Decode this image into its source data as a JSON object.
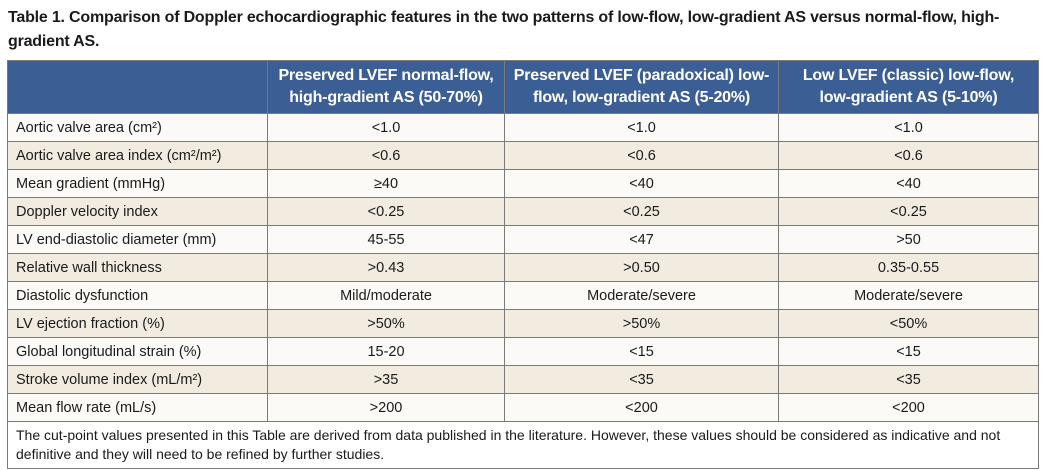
{
  "title": "Table 1. Comparison of Doppler echocardiographic features in the two patterns of low-flow, low-gradient AS versus normal-flow, high-gradient AS.",
  "headers": [
    "",
    "Preserved LVEF normal-flow, high-gradient AS (50-70%)",
    "Preserved LVEF (paradoxical) low-flow, low-gradient AS (5-20%)",
    "Low LVEF (classic) low-flow, low-gradient AS (5-10%)"
  ],
  "rows": [
    [
      "Aortic valve area (cm²)",
      "<1.0",
      "<1.0",
      "<1.0"
    ],
    [
      "Aortic valve area index (cm²/m²)",
      "<0.6",
      "<0.6",
      "<0.6"
    ],
    [
      "Mean gradient (mmHg)",
      "≥40",
      "<40",
      "<40"
    ],
    [
      "Doppler velocity index",
      "<0.25",
      "<0.25",
      "<0.25"
    ],
    [
      "LV end-diastolic diameter (mm)",
      "45-55",
      "<47",
      ">50"
    ],
    [
      "Relative wall thickness",
      ">0.43",
      ">0.50",
      "0.35-0.55"
    ],
    [
      "Diastolic dysfunction",
      "Mild/moderate",
      "Moderate/severe",
      "Moderate/severe"
    ],
    [
      "LV ejection fraction (%)",
      ">50%",
      ">50%",
      "<50%"
    ],
    [
      "Global longitudinal strain (%)",
      "15-20",
      "<15",
      "<15"
    ],
    [
      "Stroke volume index (mL/m²)",
      ">35",
      "<35",
      "<35"
    ],
    [
      "Mean flow rate (mL/s)",
      ">200",
      "<200",
      "<200"
    ]
  ],
  "footnote": "The cut-point values presented in this Table are derived from data published in the literature. However, these values should be considered as indicative and not definitive and they will need to be refined by further studies."
}
